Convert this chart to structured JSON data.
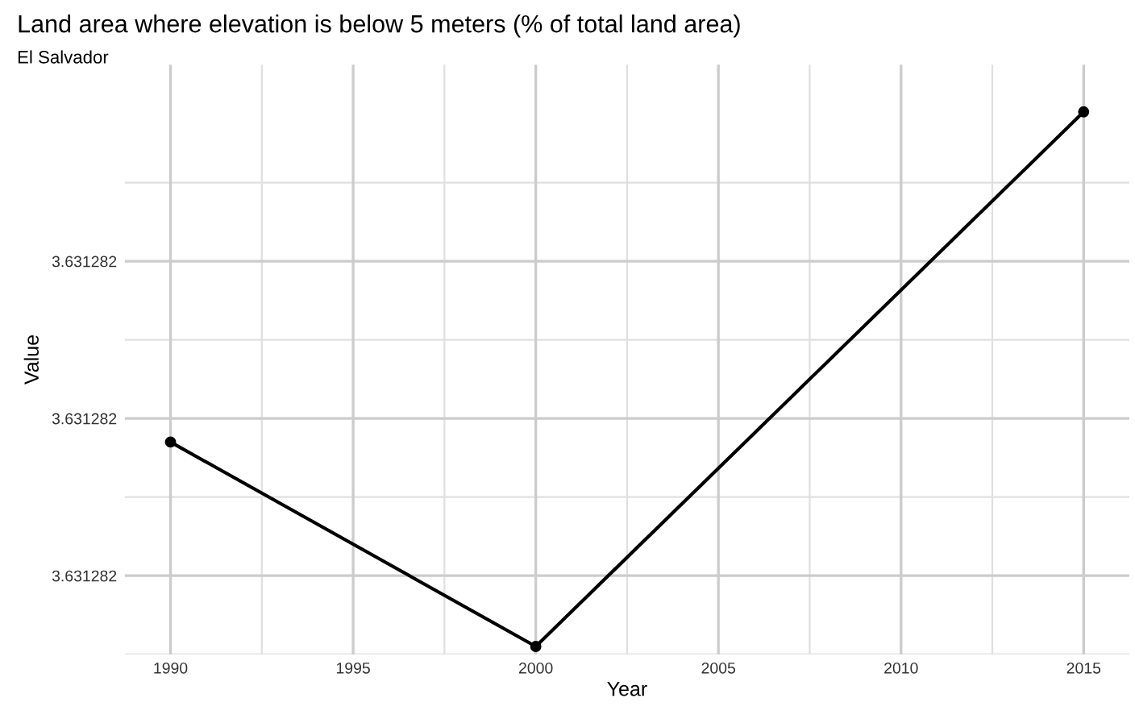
{
  "chart_data": {
    "type": "line",
    "title": "Land area where elevation is below 5 meters (% of total land area)",
    "subtitle": "El Salvador",
    "xlabel": "Year",
    "ylabel": "Value",
    "x": [
      1990,
      2000,
      2015
    ],
    "series": [
      {
        "color": "#000000",
        "values": [
          3.63128177,
          3.63128151,
          3.63128219
        ]
      }
    ],
    "xlim": [
      1988.75,
      2016.25
    ],
    "xticks": [
      1990,
      1995,
      2000,
      2005,
      2010,
      2015
    ],
    "ylim": [
      3.6312815,
      3.63128225
    ],
    "yticks": [
      {
        "value": 3.6312816,
        "label": "3.631282"
      },
      {
        "value": 3.6312818,
        "label": "3.631282"
      },
      {
        "value": 3.631282,
        "label": "3.631282"
      }
    ],
    "grid": true,
    "marker": "circle",
    "line_style": "solid"
  }
}
